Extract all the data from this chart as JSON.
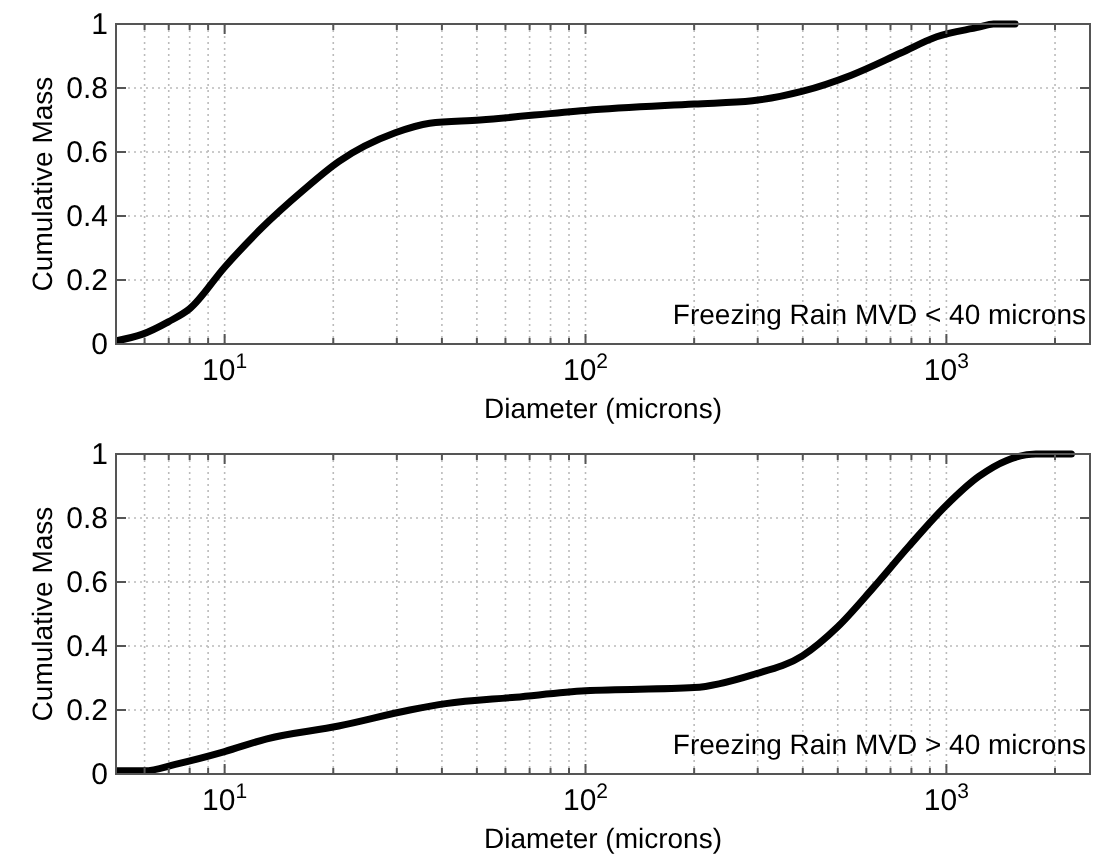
{
  "chart_data": [
    {
      "type": "line",
      "xlabel": "Diameter (microns)",
      "ylabel": "Cumulative Mass",
      "log": "x",
      "grid": true,
      "xlim": [
        5,
        2500
      ],
      "ylim": [
        0,
        1
      ],
      "xticks": [
        {
          "value": 5,
          "label": null
        },
        {
          "value": 6,
          "label": null
        },
        {
          "value": 7,
          "label": null
        },
        {
          "value": 8,
          "label": null
        },
        {
          "value": 9,
          "label": null
        },
        {
          "value": 10,
          "label": "10$^{1}$"
        },
        {
          "value": 20,
          "label": null
        },
        {
          "value": 30,
          "label": null
        },
        {
          "value": 40,
          "label": null
        },
        {
          "value": 50,
          "label": null
        },
        {
          "value": 60,
          "label": null
        },
        {
          "value": 70,
          "label": null
        },
        {
          "value": 80,
          "label": null
        },
        {
          "value": 90,
          "label": null
        },
        {
          "value": 100,
          "label": "10$^{2}$"
        },
        {
          "value": 200,
          "label": null
        },
        {
          "value": 300,
          "label": null
        },
        {
          "value": 400,
          "label": null
        },
        {
          "value": 500,
          "label": null
        },
        {
          "value": 600,
          "label": null
        },
        {
          "value": 700,
          "label": null
        },
        {
          "value": 800,
          "label": null
        },
        {
          "value": 900,
          "label": null
        },
        {
          "value": 1000,
          "label": "10$^{3}$"
        },
        {
          "value": 2000,
          "label": null
        }
      ],
      "yticks": [
        0,
        0.2,
        0.4,
        0.6,
        0.8,
        1
      ],
      "annotations": [
        "Freezing Rain MVD < 40 microns"
      ],
      "series": [
        {
          "color": "#000000",
          "x": [
            5,
            5.9,
            7,
            8,
            10,
            12.6,
            16.5,
            20.7,
            29.7,
            37,
            51,
            100,
            200,
            290,
            400,
            545,
            750,
            940,
            1230,
            1350,
            1550
          ],
          "values": [
            0.01,
            0.03,
            0.07,
            0.11,
            0.24,
            0.36,
            0.48,
            0.57,
            0.66,
            0.69,
            0.7,
            0.73,
            0.75,
            0.76,
            0.79,
            0.84,
            0.91,
            0.96,
            0.99,
            1.0,
            1.0
          ]
        }
      ]
    },
    {
      "type": "line",
      "xlabel": "Diameter (microns)",
      "ylabel": "Cumulative Mass",
      "log": "x",
      "grid": true,
      "xlim": [
        5,
        2500
      ],
      "ylim": [
        0,
        1
      ],
      "xticks": [
        {
          "value": 5,
          "label": null
        },
        {
          "value": 6,
          "label": null
        },
        {
          "value": 7,
          "label": null
        },
        {
          "value": 8,
          "label": null
        },
        {
          "value": 9,
          "label": null
        },
        {
          "value": 10,
          "label": "10$^{1}$"
        },
        {
          "value": 20,
          "label": null
        },
        {
          "value": 30,
          "label": null
        },
        {
          "value": 40,
          "label": null
        },
        {
          "value": 50,
          "label": null
        },
        {
          "value": 60,
          "label": null
        },
        {
          "value": 70,
          "label": null
        },
        {
          "value": 80,
          "label": null
        },
        {
          "value": 90,
          "label": null
        },
        {
          "value": 100,
          "label": "10$^{2}$"
        },
        {
          "value": 200,
          "label": null
        },
        {
          "value": 300,
          "label": null
        },
        {
          "value": 400,
          "label": null
        },
        {
          "value": 500,
          "label": null
        },
        {
          "value": 600,
          "label": null
        },
        {
          "value": 700,
          "label": null
        },
        {
          "value": 800,
          "label": null
        },
        {
          "value": 900,
          "label": null
        },
        {
          "value": 1000,
          "label": "10$^{3}$"
        },
        {
          "value": 2000,
          "label": null
        }
      ],
      "yticks": [
        0,
        0.2,
        0.4,
        0.6,
        0.8,
        1
      ],
      "annotations": [
        "Freezing Rain MVD > 40 microns"
      ],
      "series": [
        {
          "color": "#000000",
          "x": [
            5,
            6,
            7.3,
            10,
            13.1,
            20.7,
            32.6,
            41,
            64,
            100,
            200,
            290,
            400,
            500,
            625,
            785,
            1000,
            1230,
            1470,
            1770,
            2220
          ],
          "values": [
            0.01,
            0.01,
            0.03,
            0.07,
            0.11,
            0.15,
            0.2,
            0.22,
            0.24,
            0.26,
            0.27,
            0.31,
            0.37,
            0.46,
            0.58,
            0.71,
            0.84,
            0.93,
            0.98,
            1.0,
            1.0
          ]
        }
      ]
    }
  ]
}
